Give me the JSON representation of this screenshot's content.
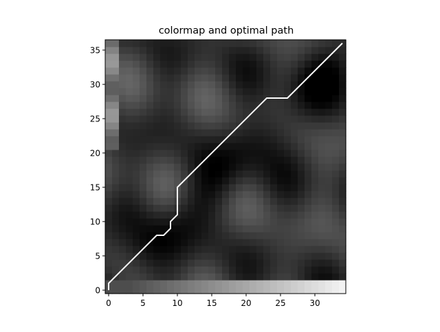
{
  "chart_data": {
    "type": "heatmap",
    "title": "colormap and optimal path",
    "xlabel": "",
    "ylabel": "",
    "colormap": "gray",
    "x_range": [
      -0.5,
      34.5
    ],
    "y_range": [
      -0.5,
      36.5
    ],
    "xticks": [
      0,
      5,
      10,
      15,
      20,
      25,
      30
    ],
    "yticks": [
      0,
      5,
      10,
      15,
      20,
      25,
      30,
      35
    ],
    "path_color": "#ffffff",
    "path": {
      "x": [
        0,
        0,
        7,
        8,
        9,
        9,
        10,
        10,
        23,
        26,
        34
      ],
      "y": [
        0,
        1,
        8,
        8,
        9,
        10,
        11,
        15,
        28,
        28,
        36
      ]
    }
  }
}
